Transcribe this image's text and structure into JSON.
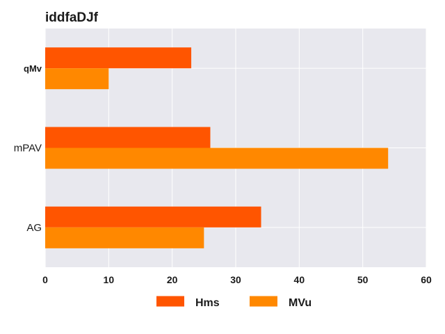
{
  "chart_data": {
    "type": "bar",
    "orientation": "horizontal",
    "title": "iddfaDJf",
    "categories": [
      "qMv",
      "mPAV",
      "AG"
    ],
    "series": [
      {
        "name": "Hms",
        "values": [
          23,
          26,
          34
        ],
        "color": "#ff5500"
      },
      {
        "name": "MVu",
        "values": [
          10,
          54,
          25
        ],
        "color": "#ff8800"
      }
    ],
    "xlabel": "",
    "ylabel": "",
    "xlim": [
      0,
      60
    ],
    "xticks": [
      0,
      10,
      20,
      30,
      40,
      50,
      60
    ],
    "grid": true,
    "legend_position": "bottom-center",
    "colors": {
      "plot_background": "#e8e8ee",
      "grid": "#ffffff"
    }
  }
}
